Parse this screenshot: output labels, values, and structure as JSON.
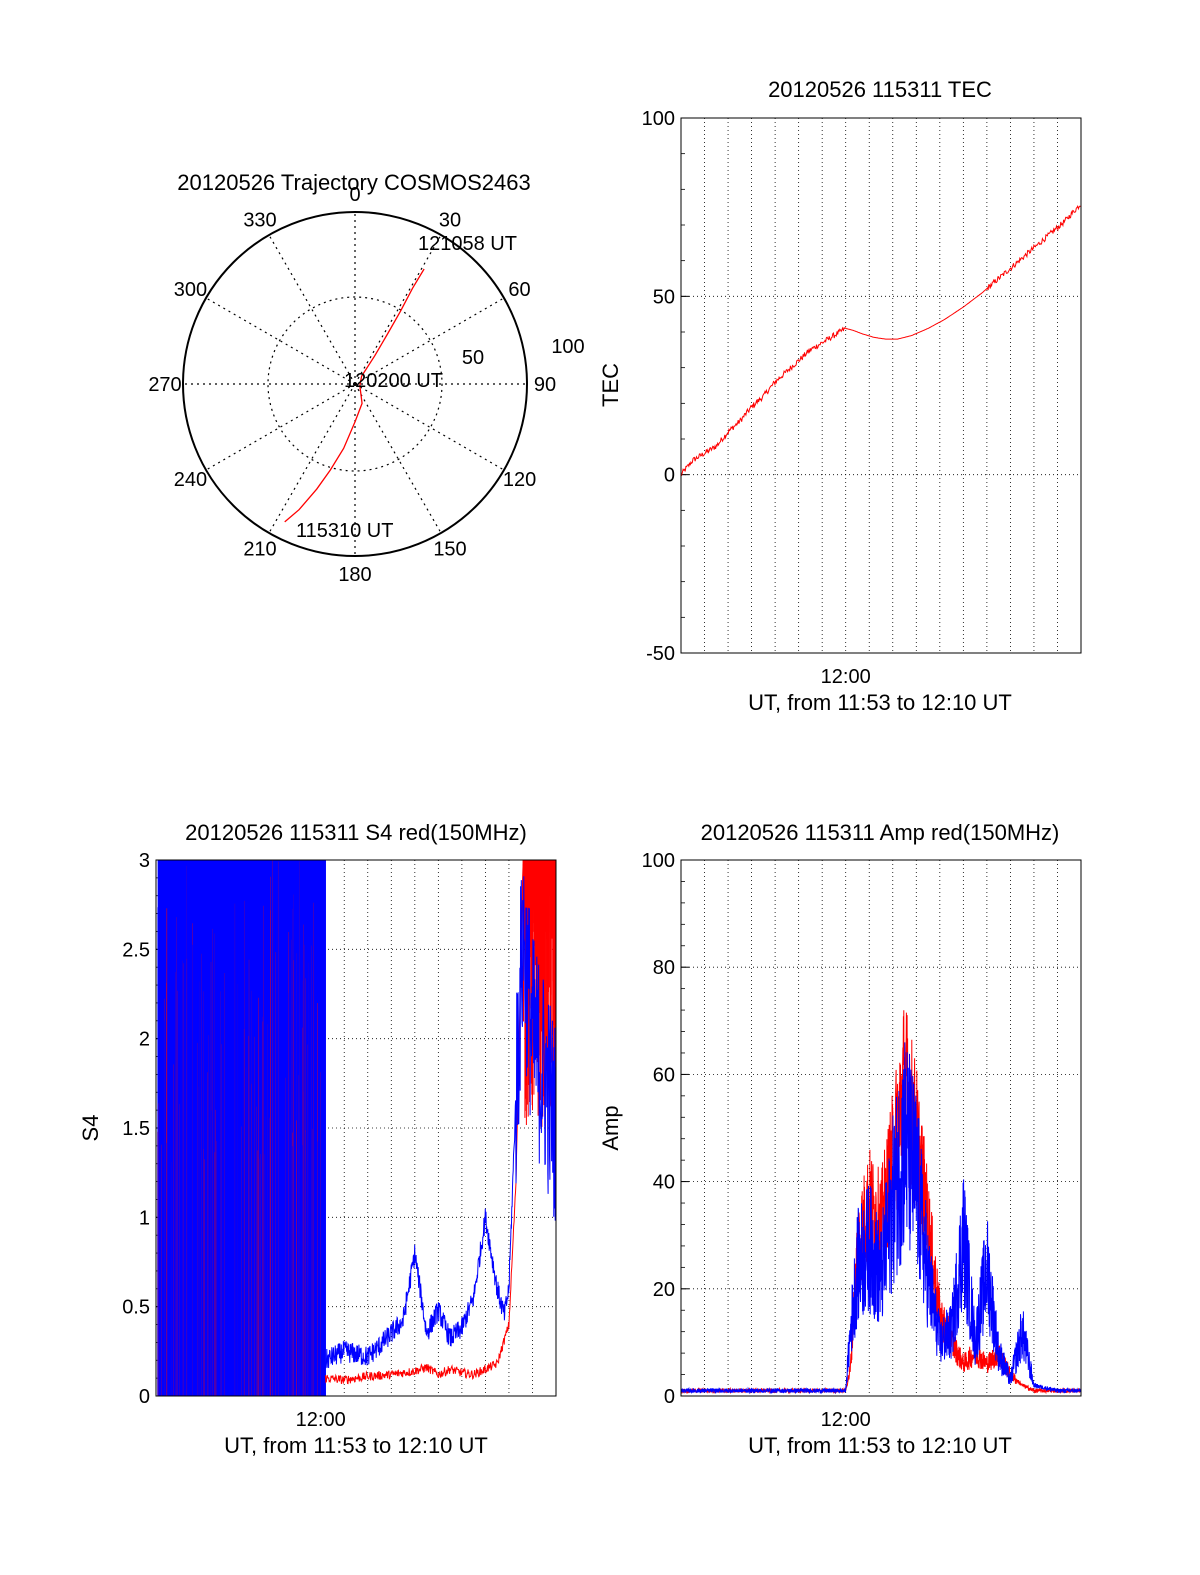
{
  "chart_data": [
    {
      "id": "polar",
      "type": "polar",
      "title": "20120526 Trajectory COSMOS2463",
      "azimuth_labels": [
        "0",
        "30",
        "60",
        "90",
        "120",
        "150",
        "180",
        "210",
        "240",
        "270",
        "300",
        "330"
      ],
      "azimuth_values": [
        0,
        30,
        60,
        90,
        120,
        150,
        180,
        210,
        240,
        270,
        300,
        330
      ],
      "radial_labels": [
        "50",
        "100"
      ],
      "grid": true,
      "trajectory": {
        "color": "#ff0000",
        "points": [
          [
            207,
            90
          ],
          [
            204,
            80
          ],
          [
            200,
            65
          ],
          [
            196,
            52
          ],
          [
            190,
            38
          ],
          [
            180,
            22
          ],
          [
            160,
            12
          ],
          [
            110,
            3
          ],
          [
            40,
            6
          ],
          [
            35,
            20
          ],
          [
            33,
            35
          ],
          [
            32,
            50
          ],
          [
            31,
            65
          ],
          [
            31,
            78
          ]
        ],
        "labels": [
          {
            "text": "115310 UT",
            "az": 197,
            "r": 90
          },
          {
            "text": "120200 UT",
            "az": 100,
            "r": 12
          },
          {
            "text": "121058 UT",
            "az": 39,
            "r": 85
          }
        ]
      }
    },
    {
      "id": "tec",
      "type": "line",
      "title": "20120526 115311 TEC",
      "xlabel": "UT, from 11:53 to 12:10 UT",
      "ylabel": "TEC",
      "xlim": [
        0,
        17
      ],
      "xtick_label": "12:00",
      "xtick_value": 7,
      "ylim": [
        -50,
        100
      ],
      "yticks": [
        -50,
        0,
        50,
        100
      ],
      "ytick_labels": [
        "-50",
        "0",
        "50",
        "100"
      ],
      "grid": true,
      "series": [
        {
          "color": "#ff0000",
          "x": [
            0,
            0.5,
            1.0,
            1.5,
            2.0,
            2.5,
            3.0,
            3.5,
            4.0,
            4.5,
            5.0,
            5.5,
            6.0,
            6.5,
            7.0,
            7.3,
            7.7,
            8.2,
            8.7,
            9.2,
            9.8,
            10.5,
            11.2,
            12.0,
            12.8,
            13.5,
            14.2,
            14.9,
            15.6,
            16.3,
            17.0
          ],
          "y": [
            0,
            4,
            6,
            8,
            12,
            15,
            19,
            22,
            26,
            29,
            32,
            35,
            37,
            39,
            41,
            40.5,
            39.5,
            38.5,
            38,
            38,
            39,
            41,
            43.5,
            47,
            51,
            55,
            59,
            63,
            67,
            71,
            76
          ]
        }
      ]
    },
    {
      "id": "s4",
      "type": "line",
      "title": "20120526 115311 S4 red(150MHz)",
      "xlabel": "UT, from 11:53 to 12:10 UT",
      "ylabel": "S4",
      "xlim": [
        0,
        17
      ],
      "xtick_label": "12:00",
      "xtick_value": 7,
      "ylim": [
        0,
        3
      ],
      "yticks": [
        0,
        0.5,
        1,
        1.5,
        2,
        2.5,
        3
      ],
      "ytick_labels": [
        "0",
        "0.5",
        "1",
        "1.5",
        "2",
        "2.5",
        "3"
      ],
      "grid": true,
      "series": [
        {
          "color": "#ff0000",
          "saturated_until_x": 7.2,
          "saturated_from_x": 15.6,
          "x": [
            7.2,
            8,
            9,
            10,
            11,
            11.5,
            12,
            12.5,
            13,
            13.5,
            14,
            14.5,
            15,
            15.3,
            15.6
          ],
          "y": [
            0.1,
            0.09,
            0.11,
            0.12,
            0.14,
            0.16,
            0.12,
            0.15,
            0.13,
            0.12,
            0.15,
            0.18,
            0.4,
            1.2,
            3.0
          ]
        },
        {
          "color": "#0000ff",
          "saturated_until_x": 7.2,
          "x": [
            7.2,
            8,
            9,
            9.5,
            10,
            10.5,
            11,
            11.5,
            12,
            12.5,
            13,
            13.5,
            14,
            14.5,
            14.8,
            15,
            15.3,
            15.6,
            16,
            16.5,
            17.0
          ],
          "y": [
            0.2,
            0.25,
            0.22,
            0.28,
            0.35,
            0.42,
            0.8,
            0.35,
            0.48,
            0.32,
            0.38,
            0.55,
            1.0,
            0.6,
            0.45,
            0.6,
            1.7,
            2.6,
            2.0,
            1.8,
            1.5
          ]
        }
      ]
    },
    {
      "id": "amp",
      "type": "line",
      "title": "20120526 115311 Amp red(150MHz)",
      "xlabel": "UT, from 11:53 to 12:10 UT",
      "ylabel": "Amp",
      "xlim": [
        0,
        17
      ],
      "xtick_label": "12:00",
      "xtick_value": 7,
      "ylim": [
        0,
        100
      ],
      "yticks": [
        0,
        20,
        40,
        60,
        80,
        100
      ],
      "ytick_labels": [
        "0",
        "20",
        "40",
        "60",
        "80",
        "100"
      ],
      "grid": true,
      "series": [
        {
          "color": "#ff0000",
          "x": [
            0,
            7.0,
            7.2,
            7.5,
            8.0,
            8.5,
            9.0,
            9.5,
            10.0,
            10.5,
            11.0,
            11.5,
            12.0,
            12.5,
            13.0,
            13.5,
            14.0,
            14.5,
            15.0,
            17.0
          ],
          "y": [
            1,
            1,
            5,
            28,
            36,
            32,
            44,
            58,
            48,
            32,
            15,
            10,
            6,
            8,
            6,
            8,
            4,
            2,
            1,
            1
          ]
        },
        {
          "color": "#0000ff",
          "x": [
            0,
            7.0,
            7.2,
            7.5,
            8.0,
            8.5,
            9.0,
            9.5,
            10.0,
            10.5,
            11.0,
            11.5,
            12.0,
            12.5,
            13.0,
            13.5,
            14.0,
            14.5,
            15.0,
            16.0,
            17.0
          ],
          "y": [
            1,
            1,
            12,
            24,
            28,
            22,
            36,
            48,
            40,
            22,
            10,
            12,
            30,
            10,
            24,
            8,
            3,
            12,
            2,
            1,
            1
          ]
        }
      ]
    }
  ]
}
